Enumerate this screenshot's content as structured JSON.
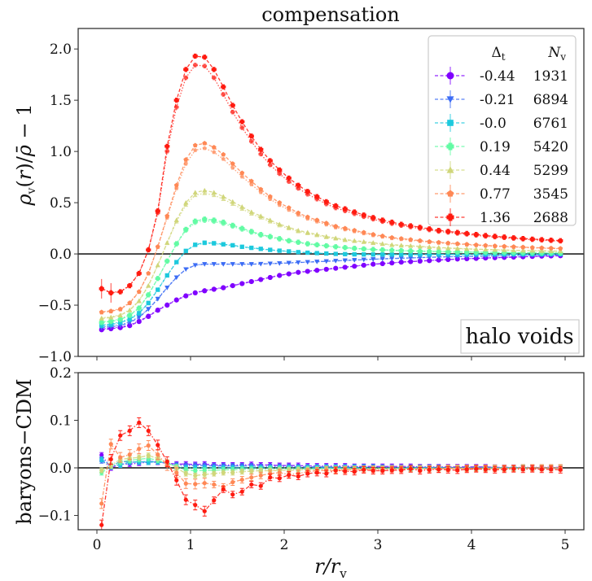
{
  "chart_data": [
    {
      "panel": "top",
      "type": "line",
      "title": "compensation",
      "xlabel": "r/r_v",
      "ylabel": "ρ_v(r)/ρ̄ − 1",
      "ylim": [
        -1.0,
        2.2
      ],
      "xlim": [
        -0.2,
        5.2
      ],
      "yticks": [
        "−1.0",
        "−0.5",
        "0.0",
        "0.5",
        "1.0",
        "1.5",
        "2.0"
      ],
      "ytick_values": [
        -1.0,
        -0.5,
        0.0,
        0.5,
        1.0,
        1.5,
        2.0
      ],
      "xticks_values": [
        0,
        1,
        2,
        3,
        4,
        5
      ],
      "hline": 0.0,
      "annotation": "halo voids",
      "annotation_position": "bottom-right",
      "legend": {
        "position": "top-right",
        "header": [
          "Δ_t",
          "N_v"
        ],
        "entries": [
          {
            "delta": "-0.44",
            "n": "1931"
          },
          {
            "delta": "-0.21",
            "n": "6894"
          },
          {
            "delta": "-0.0",
            "n": "6761"
          },
          {
            "delta": "0.19",
            "n": "5420"
          },
          {
            "delta": "0.44",
            "n": "5299"
          },
          {
            "delta": "0.77",
            "n": "3545"
          },
          {
            "delta": "1.36",
            "n": "2688"
          }
        ]
      },
      "x": [
        0.05,
        0.15,
        0.25,
        0.35,
        0.45,
        0.55,
        0.65,
        0.75,
        0.85,
        0.95,
        1.05,
        1.15,
        1.25,
        1.35,
        1.45,
        1.55,
        1.65,
        1.75,
        1.85,
        1.95,
        2.05,
        2.15,
        2.25,
        2.35,
        2.45,
        2.55,
        2.65,
        2.75,
        2.85,
        2.95,
        3.05,
        3.15,
        3.25,
        3.35,
        3.45,
        3.55,
        3.65,
        3.75,
        3.85,
        3.95,
        4.05,
        4.15,
        4.25,
        4.35,
        4.45,
        4.55,
        4.65,
        4.75,
        4.85,
        4.95
      ],
      "series": [
        {
          "name": "-0.44",
          "color": "#8000ff",
          "marker": "circle",
          "values": [
            -0.74,
            -0.73,
            -0.72,
            -0.7,
            -0.66,
            -0.61,
            -0.55,
            -0.5,
            -0.45,
            -0.41,
            -0.38,
            -0.36,
            -0.345,
            -0.33,
            -0.31,
            -0.29,
            -0.27,
            -0.25,
            -0.23,
            -0.21,
            -0.195,
            -0.18,
            -0.17,
            -0.16,
            -0.15,
            -0.14,
            -0.13,
            -0.12,
            -0.11,
            -0.1,
            -0.095,
            -0.088,
            -0.08,
            -0.075,
            -0.07,
            -0.065,
            -0.06,
            -0.055,
            -0.05,
            -0.047,
            -0.044,
            -0.04,
            -0.037,
            -0.034,
            -0.031,
            -0.028,
            -0.025,
            -0.022,
            -0.02,
            -0.018
          ]
        },
        {
          "name": "-0.21",
          "color": "#3c6cf5",
          "marker": "triangle-down",
          "values": [
            -0.72,
            -0.71,
            -0.7,
            -0.67,
            -0.62,
            -0.54,
            -0.44,
            -0.33,
            -0.23,
            -0.15,
            -0.11,
            -0.1,
            -0.1,
            -0.1,
            -0.1,
            -0.1,
            -0.1,
            -0.098,
            -0.095,
            -0.092,
            -0.088,
            -0.084,
            -0.08,
            -0.076,
            -0.072,
            -0.068,
            -0.064,
            -0.06,
            -0.056,
            -0.052,
            -0.048,
            -0.045,
            -0.042,
            -0.039,
            -0.036,
            -0.033,
            -0.03,
            -0.028,
            -0.026,
            -0.024,
            -0.022,
            -0.02,
            -0.018,
            -0.016,
            -0.014,
            -0.012,
            -0.011,
            -0.01,
            -0.009,
            -0.008
          ]
        },
        {
          "name": "-0.0",
          "color": "#1cc9dd",
          "marker": "square",
          "values": [
            -0.7,
            -0.69,
            -0.67,
            -0.64,
            -0.58,
            -0.48,
            -0.35,
            -0.21,
            -0.08,
            0.03,
            0.09,
            0.11,
            0.105,
            0.095,
            0.085,
            0.07,
            0.06,
            0.05,
            0.04,
            0.032,
            0.025,
            0.018,
            0.012,
            0.008,
            0.004,
            0.0,
            -0.002,
            -0.004,
            -0.005,
            -0.006,
            -0.006,
            -0.006,
            -0.006,
            -0.006,
            -0.006,
            -0.006,
            -0.005,
            -0.005,
            -0.005,
            -0.005,
            -0.004,
            -0.004,
            -0.004,
            -0.004,
            -0.003,
            -0.003,
            -0.003,
            -0.003,
            -0.002,
            -0.002
          ]
        },
        {
          "name": "0.19",
          "color": "#62fba4",
          "marker": "plus-filled",
          "values": [
            -0.67,
            -0.66,
            -0.64,
            -0.6,
            -0.53,
            -0.4,
            -0.24,
            -0.07,
            0.1,
            0.24,
            0.32,
            0.34,
            0.33,
            0.31,
            0.28,
            0.25,
            0.22,
            0.19,
            0.17,
            0.15,
            0.13,
            0.115,
            0.1,
            0.09,
            0.08,
            0.07,
            0.062,
            0.055,
            0.049,
            0.044,
            0.04,
            0.036,
            0.033,
            0.03,
            0.027,
            0.025,
            0.023,
            0.021,
            0.019,
            0.018,
            0.017,
            0.016,
            0.015,
            0.014,
            0.013,
            0.012,
            0.011,
            0.01,
            0.01,
            0.009
          ]
        },
        {
          "name": "0.44",
          "color": "#d0d67a",
          "marker": "triangle-up",
          "values": [
            -0.63,
            -0.62,
            -0.6,
            -0.55,
            -0.46,
            -0.31,
            -0.11,
            0.11,
            0.33,
            0.5,
            0.6,
            0.62,
            0.6,
            0.56,
            0.51,
            0.46,
            0.41,
            0.37,
            0.33,
            0.29,
            0.26,
            0.23,
            0.21,
            0.19,
            0.17,
            0.155,
            0.14,
            0.13,
            0.12,
            0.11,
            0.1,
            0.09,
            0.085,
            0.08,
            0.074,
            0.068,
            0.063,
            0.058,
            0.054,
            0.05,
            0.047,
            0.044,
            0.041,
            0.038,
            0.036,
            0.034,
            0.032,
            0.03,
            0.028,
            0.027
          ]
        },
        {
          "name": "0.77",
          "color": "#ff8855",
          "marker": "pentagon",
          "values": [
            -0.57,
            -0.56,
            -0.54,
            -0.48,
            -0.37,
            -0.19,
            0.07,
            0.37,
            0.67,
            0.92,
            1.06,
            1.08,
            1.04,
            0.97,
            0.88,
            0.79,
            0.71,
            0.63,
            0.56,
            0.5,
            0.45,
            0.4,
            0.36,
            0.33,
            0.3,
            0.27,
            0.25,
            0.23,
            0.21,
            0.19,
            0.175,
            0.16,
            0.15,
            0.14,
            0.13,
            0.12,
            0.113,
            0.106,
            0.1,
            0.094,
            0.088,
            0.083,
            0.078,
            0.074,
            0.07,
            0.066,
            0.062,
            0.059,
            0.056,
            0.053
          ]
        },
        {
          "name": "1.36",
          "color": "#ff1a10",
          "marker": "plus-filled",
          "values": [
            -0.34,
            -0.38,
            -0.37,
            -0.31,
            -0.19,
            0.04,
            0.42,
            1.05,
            1.5,
            1.8,
            1.93,
            1.92,
            1.8,
            1.63,
            1.45,
            1.29,
            1.15,
            1.02,
            0.91,
            0.82,
            0.74,
            0.67,
            0.61,
            0.56,
            0.51,
            0.47,
            0.44,
            0.41,
            0.38,
            0.355,
            0.33,
            0.31,
            0.29,
            0.275,
            0.26,
            0.245,
            0.23,
            0.22,
            0.21,
            0.2,
            0.19,
            0.18,
            0.172,
            0.165,
            0.158,
            0.151,
            0.145,
            0.14,
            0.135,
            0.13
          ]
        }
      ]
    },
    {
      "panel": "bottom",
      "type": "line",
      "xlabel": "r/r_v",
      "ylabel": "baryons−CDM",
      "ylim": [
        -0.13,
        0.2
      ],
      "xlim": [
        -0.2,
        5.2
      ],
      "yticks": [
        "−0.1",
        "0.0",
        "0.1",
        "0.2"
      ],
      "ytick_values": [
        -0.1,
        0.0,
        0.1,
        0.2
      ],
      "xticks": [
        "0",
        "1",
        "2",
        "3",
        "4",
        "5"
      ],
      "xticks_values": [
        0,
        1,
        2,
        3,
        4,
        5
      ],
      "hline": 0.0,
      "x": [
        0.05,
        0.15,
        0.25,
        0.35,
        0.45,
        0.55,
        0.65,
        0.75,
        0.85,
        0.95,
        1.05,
        1.15,
        1.25,
        1.35,
        1.45,
        1.55,
        1.65,
        1.75,
        1.85,
        1.95,
        2.05,
        2.15,
        2.25,
        2.35,
        2.45,
        2.55,
        2.65,
        2.75,
        2.85,
        2.95,
        3.05,
        3.15,
        3.25,
        3.35,
        3.45,
        3.55,
        3.65,
        3.75,
        3.85,
        3.95,
        4.05,
        4.15,
        4.25,
        4.35,
        4.45,
        4.55,
        4.65,
        4.75,
        4.85,
        4.95
      ],
      "series": [
        {
          "name": "-0.44",
          "color": "#8000ff",
          "values": [
            0.027,
            0.0,
            0.008,
            0.008,
            0.01,
            0.012,
            0.012,
            0.01,
            0.008,
            0.008,
            0.007,
            0.008,
            0.006,
            0.006,
            0.006,
            0.006,
            0.007,
            0.006,
            0.006,
            0.005,
            0.005,
            0.005,
            0.004,
            0.004,
            0.004,
            0.004,
            0.004,
            0.003,
            0.003,
            0.003,
            0.003,
            0.003,
            0.003,
            0.003,
            0.002,
            0.002,
            0.002,
            0.002,
            0.002,
            0.002,
            0.002,
            0.002,
            0.001,
            0.001,
            0.001,
            0.001,
            0.001,
            0.001,
            0.001,
            0.001
          ]
        },
        {
          "name": "-0.21",
          "color": "#3c6cf5",
          "values": [
            0.015,
            0.002,
            0.014,
            0.012,
            0.012,
            0.014,
            0.013,
            0.01,
            0.006,
            0.005,
            0.005,
            0.005,
            0.004,
            0.004,
            0.004,
            0.004,
            0.004,
            0.003,
            0.003,
            0.003,
            0.003,
            0.002,
            0.002,
            0.002,
            0.002,
            0.002,
            0.002,
            0.002,
            0.002,
            0.002,
            0.001,
            0.001,
            0.001,
            0.001,
            0.001,
            0.001,
            0.001,
            0.001,
            0.001,
            0.001,
            0.001,
            0.001,
            0.001,
            0.0,
            0.0,
            0.0,
            0.0,
            0.0,
            0.0,
            0.0
          ]
        },
        {
          "name": "-0.0",
          "color": "#1cc9dd",
          "values": [
            0.018,
            0.005,
            0.006,
            0.012,
            0.013,
            0.012,
            0.013,
            0.01,
            0.003,
            0.0,
            0.0,
            0.0,
            0.0,
            0.0,
            0.0,
            0.0,
            0.0,
            0.0,
            0.0,
            0.0,
            0.0,
            0.0,
            0.0,
            0.0,
            0.0,
            0.0,
            0.0,
            0.0,
            0.0,
            0.0,
            0.0,
            0.0,
            0.0,
            0.0,
            0.0,
            0.0,
            0.0,
            0.0,
            0.0,
            0.0,
            0.0,
            0.0,
            0.0,
            0.0,
            0.0,
            0.0,
            0.0,
            0.0,
            0.0,
            0.0
          ]
        },
        {
          "name": "0.19",
          "color": "#62fba4",
          "values": [
            -0.01,
            0.003,
            0.012,
            0.016,
            0.018,
            0.02,
            0.016,
            0.01,
            0.002,
            -0.004,
            -0.006,
            -0.005,
            -0.005,
            -0.004,
            -0.004,
            -0.003,
            -0.003,
            -0.003,
            -0.002,
            -0.002,
            -0.002,
            -0.002,
            -0.002,
            -0.002,
            -0.001,
            -0.001,
            -0.001,
            -0.001,
            -0.001,
            -0.001,
            -0.001,
            -0.001,
            -0.001,
            -0.001,
            -0.001,
            -0.001,
            -0.001,
            0.0,
            0.0,
            0.0,
            0.0,
            0.0,
            0.0,
            0.0,
            0.0,
            0.0,
            0.0,
            0.0,
            0.0,
            0.0
          ]
        },
        {
          "name": "0.44",
          "color": "#d0d67a",
          "values": [
            -0.005,
            0.005,
            0.018,
            0.02,
            0.022,
            0.026,
            0.02,
            0.012,
            0.0,
            -0.012,
            -0.016,
            -0.014,
            -0.012,
            -0.01,
            -0.01,
            -0.008,
            -0.007,
            -0.006,
            -0.006,
            -0.005,
            -0.005,
            -0.004,
            -0.004,
            -0.004,
            -0.003,
            -0.003,
            -0.003,
            -0.003,
            -0.002,
            -0.002,
            -0.002,
            -0.002,
            -0.002,
            -0.002,
            -0.002,
            -0.001,
            -0.001,
            -0.001,
            -0.001,
            -0.001,
            -0.001,
            -0.001,
            -0.001,
            -0.001,
            -0.001,
            -0.001,
            0.0,
            0.0,
            0.0,
            0.0
          ]
        },
        {
          "name": "0.77",
          "color": "#ff8855",
          "values": [
            -0.075,
            0.05,
            0.022,
            0.028,
            0.04,
            0.047,
            0.028,
            0.005,
            -0.01,
            -0.033,
            -0.034,
            -0.032,
            -0.035,
            -0.04,
            -0.03,
            -0.025,
            -0.02,
            -0.016,
            -0.012,
            -0.01,
            -0.014,
            -0.012,
            -0.008,
            -0.006,
            -0.005,
            -0.006,
            -0.004,
            -0.004,
            -0.003,
            -0.003,
            -0.003,
            -0.002,
            -0.002,
            -0.002,
            -0.002,
            -0.002,
            -0.002,
            -0.001,
            -0.001,
            -0.001,
            -0.001,
            -0.001,
            -0.001,
            -0.001,
            -0.001,
            0.0,
            0.0,
            0.0,
            0.0,
            0.0
          ]
        },
        {
          "name": "1.36",
          "color": "#ff1a10",
          "values": [
            -0.12,
            0.018,
            0.068,
            0.078,
            0.095,
            0.078,
            0.048,
            0.013,
            -0.026,
            -0.067,
            -0.078,
            -0.091,
            -0.068,
            -0.045,
            -0.056,
            -0.05,
            -0.035,
            -0.038,
            -0.02,
            -0.022,
            -0.015,
            -0.018,
            -0.012,
            -0.01,
            -0.012,
            -0.005,
            -0.007,
            -0.008,
            -0.004,
            -0.006,
            -0.006,
            -0.005,
            -0.005,
            -0.002,
            -0.006,
            -0.004,
            -0.003,
            -0.004,
            -0.005,
            -0.003,
            -0.002,
            -0.003,
            -0.004,
            -0.003,
            -0.002,
            -0.003,
            -0.002,
            -0.003,
            -0.003,
            -0.004
          ]
        }
      ]
    }
  ]
}
